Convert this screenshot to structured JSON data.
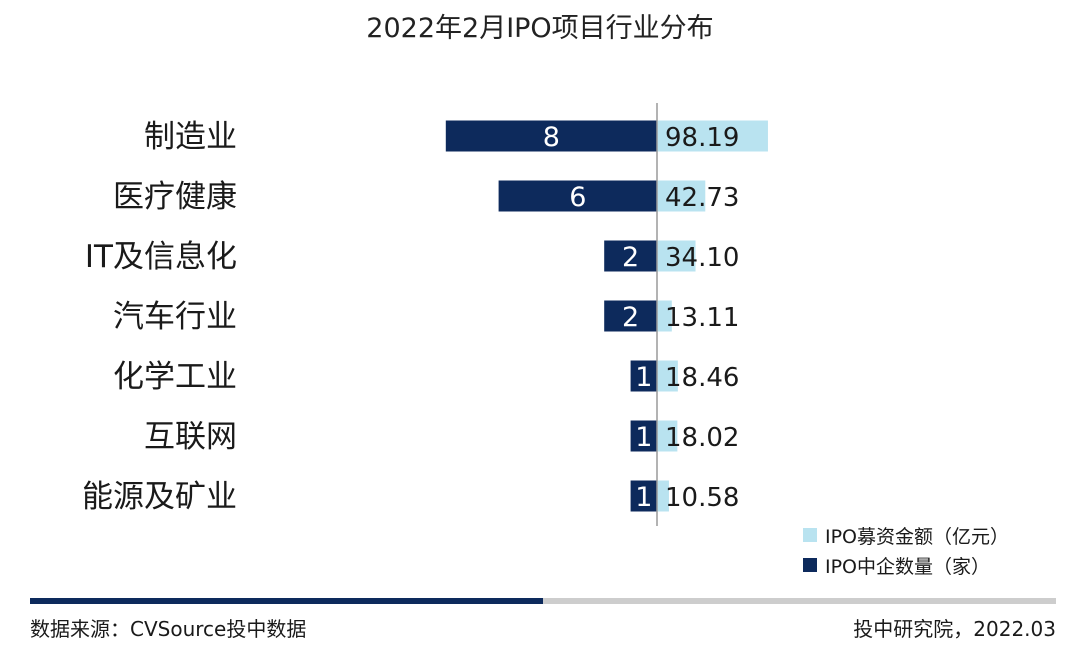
{
  "colors": {
    "count": "#0d2a5c",
    "amount": "#b9e3f0",
    "axis": "#9a9a9a"
  },
  "chart_data": {
    "type": "bar",
    "orientation": "horizontal-diverging",
    "title": "2022年2月IPO项目行业分布",
    "categories": [
      "制造业",
      "医疗健康",
      "IT及信息化",
      "汽车行业",
      "化学工业",
      "互联网",
      "能源及矿业"
    ],
    "series": [
      {
        "name": "IPO中企数量（家）",
        "direction": "left",
        "values": [
          8,
          6,
          2,
          2,
          1,
          1,
          1
        ],
        "labels": [
          "8",
          "6",
          "2",
          "2",
          "1",
          "1",
          "1"
        ]
      },
      {
        "name": "IPO募资金额（亿元）",
        "direction": "right",
        "values": [
          98.19,
          42.73,
          34.1,
          13.11,
          18.46,
          18.02,
          10.58
        ],
        "labels": [
          "98.19",
          "42.73",
          "34.10",
          "13.11",
          "18.46",
          "18.02",
          "10.58"
        ]
      }
    ],
    "legend": {
      "position": "bottom-right",
      "items": [
        "IPO募资金额（亿元）",
        "IPO中企数量（家）"
      ]
    },
    "grid": false
  },
  "footer": {
    "source": "数据来源：CVSource投中数据",
    "org_date": "投中研究院，2022.03"
  }
}
